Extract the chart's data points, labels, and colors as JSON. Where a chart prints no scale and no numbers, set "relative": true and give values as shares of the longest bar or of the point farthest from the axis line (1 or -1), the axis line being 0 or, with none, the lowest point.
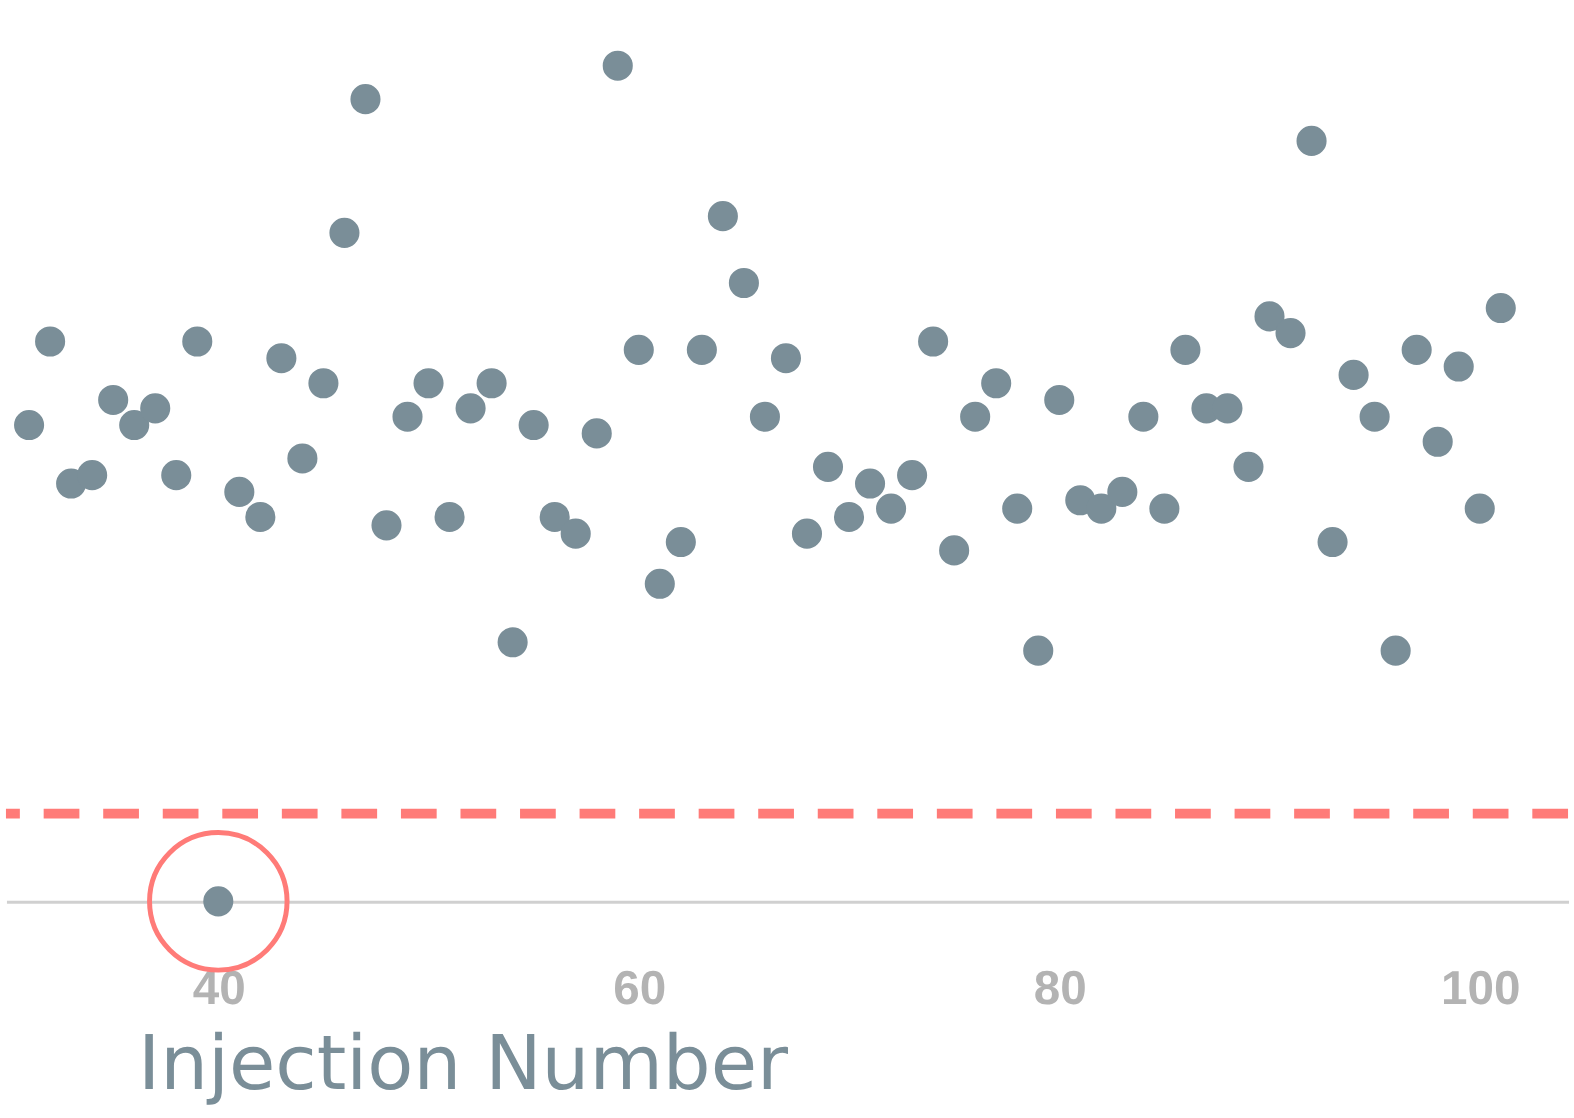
{
  "chart_data": {
    "type": "scatter",
    "xlabel": "Injection Number",
    "relative": true,
    "marker": "circle",
    "grid": false,
    "xlim": [
      29.9,
      104.2
    ],
    "xticks": [
      40,
      60,
      80,
      100
    ],
    "x": [
      31,
      32,
      33,
      34,
      35,
      36,
      37,
      38,
      39,
      40,
      41,
      42,
      43,
      44,
      45,
      46,
      47,
      48,
      49,
      50,
      51,
      52,
      53,
      54,
      55,
      56,
      57,
      58,
      59,
      60,
      61,
      62,
      63,
      64,
      65,
      66,
      67,
      68,
      69,
      70,
      71,
      72,
      73,
      74,
      75,
      76,
      77,
      78,
      79,
      80,
      81,
      82,
      83,
      84,
      85,
      86,
      87,
      88,
      89,
      90,
      91,
      92,
      93,
      94,
      95,
      96,
      97,
      98,
      99,
      100,
      101
    ],
    "series": [
      {
        "color": "#7a8e98",
        "values": [
          0.57,
          0.67,
          0.5,
          0.51,
          0.6,
          0.57,
          0.59,
          0.51,
          0.67,
          0,
          0.49,
          0.46,
          0.65,
          0.53,
          0.62,
          0.8,
          0.96,
          0.45,
          0.58,
          0.62,
          0.46,
          0.59,
          0.62,
          0.31,
          0.57,
          0.46,
          0.44,
          0.56,
          1,
          0.66,
          0.38,
          0.43,
          0.66,
          0.82,
          0.74,
          0.58,
          0.65,
          0.44,
          0.52,
          0.46,
          0.5,
          0.47,
          0.51,
          0.67,
          0.42,
          0.58,
          0.62,
          0.47,
          0.3,
          0.6,
          0.48,
          0.47,
          0.49,
          0.58,
          0.47,
          0.66,
          0.59,
          0.59,
          0.52,
          0.7,
          0.68,
          0.91,
          0.43,
          0.63,
          0.58,
          0.3,
          0.66,
          0.55,
          0.64,
          0.47,
          0.71
        ]
      }
    ],
    "ref_lines": [
      {
        "axis": "y",
        "value": 0.105,
        "color": "#ff7b78",
        "line_style": "dashed"
      }
    ]
  }
}
